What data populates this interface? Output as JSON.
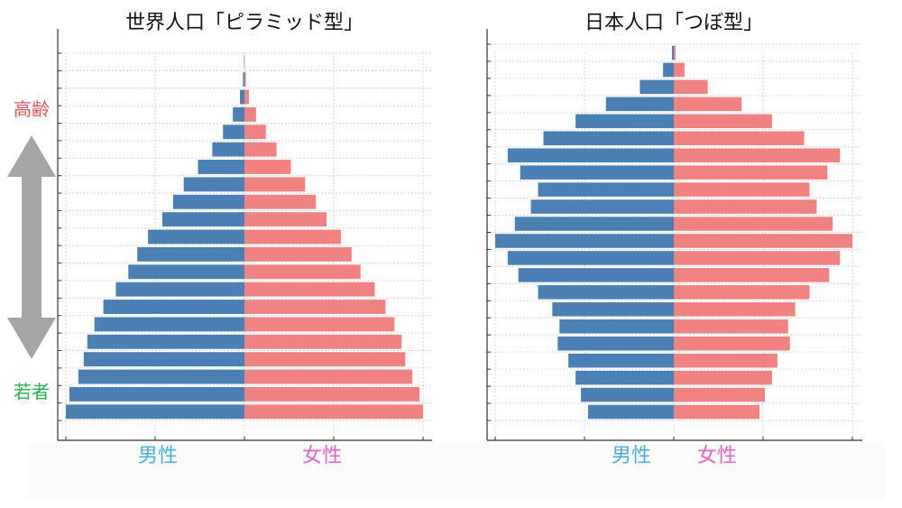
{
  "labels": {
    "old": "高齢",
    "young": "若者",
    "old_color": "#e05252",
    "young_color": "#22b34a",
    "arrow_color": "#a6a6a6",
    "arrow_icon": "double-headed-vertical-arrow"
  },
  "colors": {
    "male": "#4a80b4",
    "female": "#f08382",
    "male_label": "#4aaed9",
    "female_label": "#e762c7",
    "bottom_panel": "#fbfbfb"
  },
  "chart_data": [
    {
      "type": "bar",
      "orientation": "horizontal-mirrored",
      "title": "世界人口「ピラミッド型」",
      "male_label": "男性",
      "female_label": "女性",
      "y_order": "bottom-to-top (youngest at bottom)",
      "xlim": [
        -1.0,
        1.0
      ],
      "grid": true,
      "series": [
        {
          "name": "男性",
          "values": [
            1.0,
            0.98,
            0.93,
            0.9,
            0.88,
            0.84,
            0.79,
            0.72,
            0.65,
            0.6,
            0.54,
            0.46,
            0.4,
            0.34,
            0.26,
            0.18,
            0.12,
            0.065,
            0.025,
            0.008,
            0.002
          ]
        },
        {
          "name": "女性",
          "values": [
            1.0,
            0.98,
            0.94,
            0.9,
            0.88,
            0.84,
            0.79,
            0.73,
            0.65,
            0.6,
            0.54,
            0.46,
            0.4,
            0.34,
            0.26,
            0.18,
            0.12,
            0.065,
            0.025,
            0.008,
            0.002
          ]
        }
      ]
    },
    {
      "type": "bar",
      "orientation": "horizontal-mirrored",
      "title": "日本人口「つぼ型」",
      "male_label": "男性",
      "female_label": "女性",
      "y_order": "bottom-to-top (youngest at bottom)",
      "xlim": [
        -1.0,
        1.0
      ],
      "grid": true,
      "series": [
        {
          "name": "男性",
          "values": [
            0.48,
            0.52,
            0.55,
            0.59,
            0.65,
            0.64,
            0.68,
            0.76,
            0.87,
            0.93,
            1.0,
            0.89,
            0.8,
            0.76,
            0.86,
            0.93,
            0.73,
            0.55,
            0.38,
            0.19,
            0.06,
            0.01
          ]
        },
        {
          "name": "女性",
          "values": [
            0.48,
            0.51,
            0.55,
            0.58,
            0.65,
            0.64,
            0.68,
            0.76,
            0.87,
            0.93,
            1.0,
            0.89,
            0.8,
            0.76,
            0.86,
            0.93,
            0.73,
            0.55,
            0.38,
            0.19,
            0.06,
            0.01
          ]
        }
      ]
    }
  ]
}
